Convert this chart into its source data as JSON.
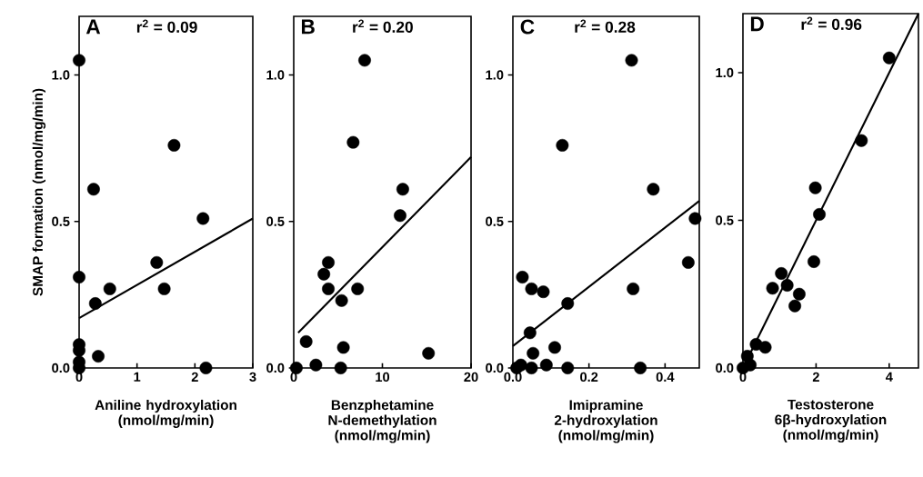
{
  "chart_data": [
    {
      "type": "scatter",
      "xlabel": "Aniline hydroxylation (nmol/mg/min)",
      "ylabel": "SMAP formation (nmol/mg/min)",
      "annotations": [
        "A",
        "r$^{2}$ = 0.09"
      ],
      "xlim": [
        0,
        3
      ],
      "ylim": [
        0,
        1.2
      ],
      "xticks": [
        0,
        1,
        2,
        3
      ],
      "yticks": [
        {
          "value": 0,
          "label": "0.0"
        },
        {
          "value": 0.5,
          "label": "0.5"
        },
        {
          "value": 1,
          "label": "1.0"
        }
      ],
      "series": [
        {
          "color": "#000000",
          "marker": "circle",
          "x": [
            0,
            1.64,
            0.25,
            2.14,
            1.34,
            0,
            0.53,
            1.47,
            0.28,
            0,
            0,
            0.33,
            0,
            0,
            2.19
          ],
          "values": [
            1.05,
            0.76,
            0.61,
            0.51,
            0.36,
            0.31,
            0.27,
            0.27,
            0.22,
            0.08,
            0.06,
            0.04,
            0,
            0.02,
            0
          ]
        },
        {
          "type": "line",
          "color": "#000000",
          "marker": "none",
          "x": [
            0,
            3
          ],
          "values": [
            0.17,
            0.51
          ]
        }
      ]
    },
    {
      "type": "scatter",
      "xlabel": "Benzphetamine N-demethylation (nmol/mg/min)",
      "annotations": [
        "B",
        "r$^{2}$ = 0.20"
      ],
      "xlim": [
        0,
        20
      ],
      "ylim": [
        0,
        1.2
      ],
      "xticks": [
        0,
        10,
        20
      ],
      "yticks": [
        {
          "value": 0,
          "label": "0.0"
        },
        {
          "value": 0.5,
          "label": "0.5"
        },
        {
          "value": 1,
          "label": "1.0"
        }
      ],
      "series": [
        {
          "color": "#000000",
          "marker": "circle",
          "x": [
            8.0,
            6.7,
            12.3,
            12.0,
            3.9,
            3.4,
            3.9,
            7.2,
            5.4,
            1.4,
            5.6,
            15.2,
            2.5,
            5.3,
            0.3
          ],
          "values": [
            1.05,
            0.77,
            0.61,
            0.52,
            0.36,
            0.32,
            0.27,
            0.27,
            0.23,
            0.09,
            0.07,
            0.05,
            0.01,
            0,
            0
          ]
        },
        {
          "type": "line",
          "color": "#000000",
          "marker": "none",
          "x": [
            0.5,
            20
          ],
          "values": [
            0.12,
            0.72
          ]
        }
      ]
    },
    {
      "type": "scatter",
      "xlabel": "Imipramine 2-hydroxylation (nmol/mg/min)",
      "annotations": [
        "C",
        "r$^{2}$ = 0.28"
      ],
      "xlim": [
        0,
        0.49
      ],
      "ylim": [
        0,
        1.2
      ],
      "xticks": [
        {
          "value": 0,
          "label": "0.0"
        },
        0.2,
        0.4
      ],
      "yticks": [
        {
          "value": 0,
          "label": "0.0"
        },
        {
          "value": 0.5,
          "label": "0.5"
        },
        {
          "value": 1,
          "label": "1.0"
        }
      ],
      "series": [
        {
          "color": "#000000",
          "marker": "circle",
          "x": [
            0.312,
            0.13,
            0.369,
            0.479,
            0.461,
            0.025,
            0.049,
            0.08,
            0.316,
            0.144,
            0.045,
            0.11,
            0.053,
            0.021,
            0.088,
            0.049,
            0.144,
            0.335,
            0.01
          ],
          "values": [
            1.05,
            0.76,
            0.61,
            0.51,
            0.36,
            0.31,
            0.27,
            0.26,
            0.27,
            0.22,
            0.12,
            0.07,
            0.05,
            0.01,
            0.01,
            0,
            0,
            0,
            0
          ]
        },
        {
          "type": "line",
          "color": "#000000",
          "marker": "none",
          "x": [
            0,
            0.49
          ],
          "values": [
            0.075,
            0.57
          ]
        }
      ]
    },
    {
      "type": "scatter",
      "xlabel": "Testosterone 6β-hydroxylation (nmol/mg/min)",
      "annotations": [
        "D",
        "r$^{2}$ = 0.96"
      ],
      "xlim": [
        0,
        4.8
      ],
      "ylim": [
        0,
        1.2
      ],
      "xticks": [
        0,
        2,
        4
      ],
      "yticks": [
        {
          "value": 0,
          "label": "0.0"
        },
        {
          "value": 0.5,
          "label": "0.5"
        },
        {
          "value": 1,
          "label": "1.0"
        }
      ],
      "series": [
        {
          "color": "#000000",
          "marker": "circle",
          "x": [
            4.0,
            3.24,
            1.98,
            2.09,
            1.94,
            1.05,
            0.81,
            1.21,
            1.54,
            1.42,
            0.61,
            0.36,
            0.12,
            0.2,
            0
          ],
          "values": [
            1.05,
            0.77,
            0.61,
            0.52,
            0.36,
            0.32,
            0.27,
            0.28,
            0.25,
            0.21,
            0.07,
            0.08,
            0.04,
            0.01,
            0
          ]
        },
        {
          "type": "line",
          "color": "#000000",
          "marker": "none",
          "x": [
            0,
            4.8
          ],
          "values": [
            0,
            1.2
          ]
        }
      ]
    }
  ]
}
